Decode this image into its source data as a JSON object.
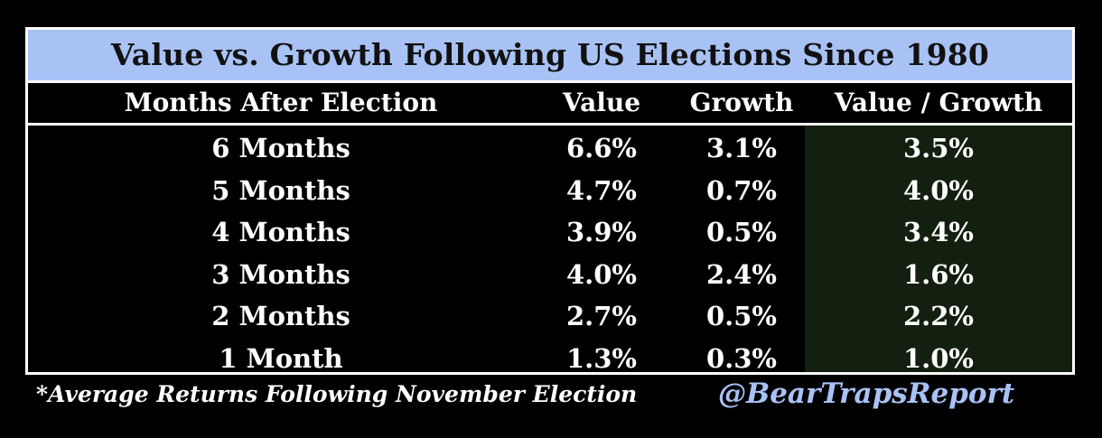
{
  "chart_data": {
    "type": "table",
    "title": "Value vs. Growth Following US Elections Since 1980",
    "columns": [
      "Months After Election",
      "Value",
      "Growth",
      "Value / Growth"
    ],
    "rows": [
      {
        "label": "6 Months",
        "value": "6.6%",
        "growth": "3.1%",
        "ratio": "3.5%"
      },
      {
        "label": "5 Months",
        "value": "4.7%",
        "growth": "0.7%",
        "ratio": "4.0%"
      },
      {
        "label": "4 Months",
        "value": "3.9%",
        "growth": "0.5%",
        "ratio": "3.4%"
      },
      {
        "label": "3 Months",
        "value": "4.0%",
        "growth": "2.4%",
        "ratio": "1.6%"
      },
      {
        "label": "2 Months",
        "value": "2.7%",
        "growth": "0.5%",
        "ratio": "2.2%"
      },
      {
        "label": "1 Month",
        "value": "1.3%",
        "growth": "0.3%",
        "ratio": "1.0%"
      }
    ],
    "footnote": "*Average Returns Following November Election",
    "source": "@BearTrapsReport"
  },
  "colors": {
    "title_background": "#a9c2f5",
    "highlight_column": "#14200f",
    "text": "#ffffff",
    "handle": "#a9c2f5"
  }
}
